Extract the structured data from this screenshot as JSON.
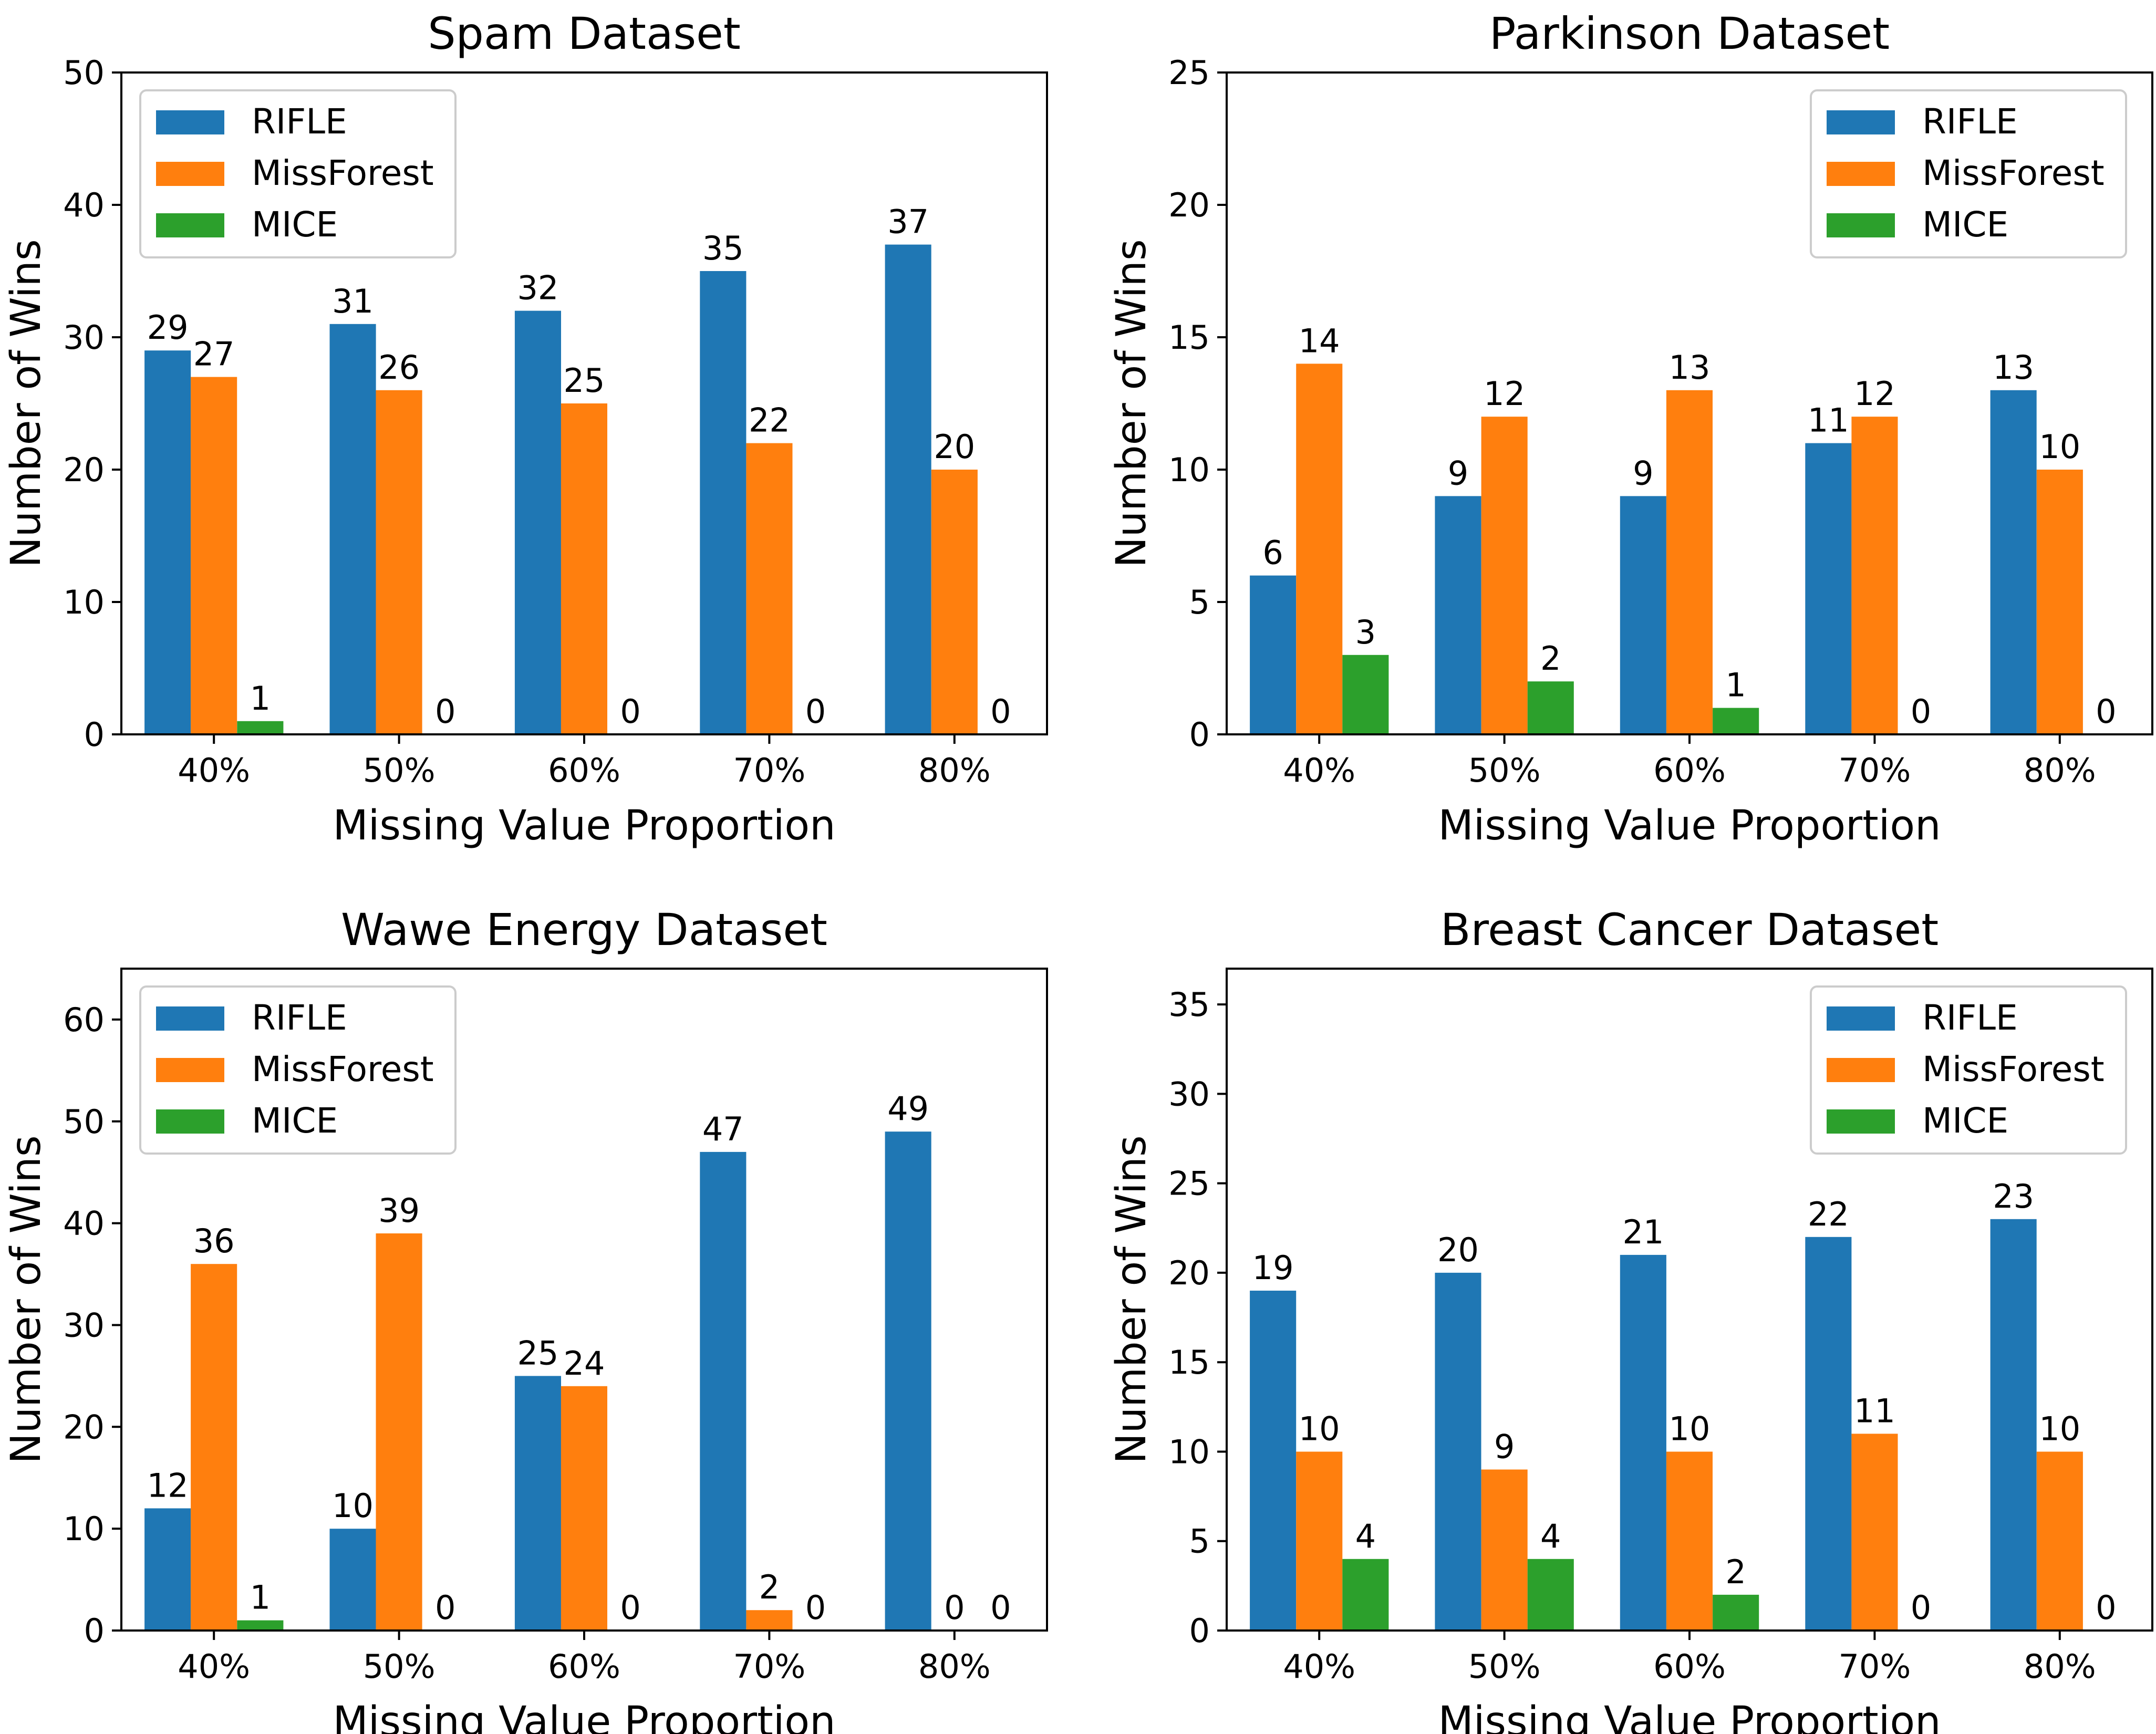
{
  "colors": {
    "RIFLE": "#1f77b4",
    "MissForest": "#ff7f0e",
    "MICE": "#2ca02c"
  },
  "chart_data": [
    {
      "type": "bar",
      "title": "Spam Dataset",
      "xlabel": "Missing Value Proportion",
      "ylabel": "Number of Wins",
      "categories": [
        "40%",
        "50%",
        "60%",
        "70%",
        "80%"
      ],
      "series": [
        {
          "name": "RIFLE",
          "values": [
            29,
            31,
            32,
            35,
            37
          ]
        },
        {
          "name": "MissForest",
          "values": [
            27,
            26,
            25,
            22,
            20
          ]
        },
        {
          "name": "MICE",
          "values": [
            1,
            0,
            0,
            0,
            0
          ]
        }
      ],
      "ylim": [
        0,
        50
      ],
      "yticks": [
        0,
        10,
        20,
        30,
        40,
        50
      ],
      "grid": false,
      "legend": "top-left"
    },
    {
      "type": "bar",
      "title": "Parkinson Dataset",
      "xlabel": "Missing Value Proportion",
      "ylabel": "Number of Wins",
      "categories": [
        "40%",
        "50%",
        "60%",
        "70%",
        "80%"
      ],
      "series": [
        {
          "name": "RIFLE",
          "values": [
            6,
            9,
            9,
            11,
            13
          ]
        },
        {
          "name": "MissForest",
          "values": [
            14,
            12,
            13,
            12,
            10
          ]
        },
        {
          "name": "MICE",
          "values": [
            3,
            2,
            1,
            0,
            0
          ]
        }
      ],
      "ylim": [
        0,
        25
      ],
      "yticks": [
        0,
        5,
        10,
        15,
        20,
        25
      ],
      "grid": false,
      "legend": "top-right"
    },
    {
      "type": "bar",
      "title": "Wawe Energy Dataset",
      "xlabel": "Missing Value Proportion",
      "ylabel": "Number of Wins",
      "categories": [
        "40%",
        "50%",
        "60%",
        "70%",
        "80%"
      ],
      "series": [
        {
          "name": "RIFLE",
          "values": [
            12,
            10,
            25,
            47,
            49
          ]
        },
        {
          "name": "MissForest",
          "values": [
            36,
            39,
            24,
            2,
            0
          ]
        },
        {
          "name": "MICE",
          "values": [
            1,
            0,
            0,
            0,
            0
          ]
        }
      ],
      "ylim": [
        0,
        65
      ],
      "yticks": [
        0,
        10,
        20,
        30,
        40,
        50,
        60
      ],
      "grid": false,
      "legend": "top-left"
    },
    {
      "type": "bar",
      "title": "Breast Cancer Dataset",
      "xlabel": "Missing Value Proportion",
      "ylabel": "Number of Wins",
      "categories": [
        "40%",
        "50%",
        "60%",
        "70%",
        "80%"
      ],
      "series": [
        {
          "name": "RIFLE",
          "values": [
            19,
            20,
            21,
            22,
            23
          ]
        },
        {
          "name": "MissForest",
          "values": [
            10,
            9,
            10,
            11,
            10
          ]
        },
        {
          "name": "MICE",
          "values": [
            4,
            4,
            2,
            0,
            0
          ]
        }
      ],
      "ylim": [
        0,
        37
      ],
      "yticks": [
        0,
        5,
        10,
        15,
        20,
        25,
        30,
        35
      ],
      "grid": false,
      "legend": "top-right"
    }
  ]
}
